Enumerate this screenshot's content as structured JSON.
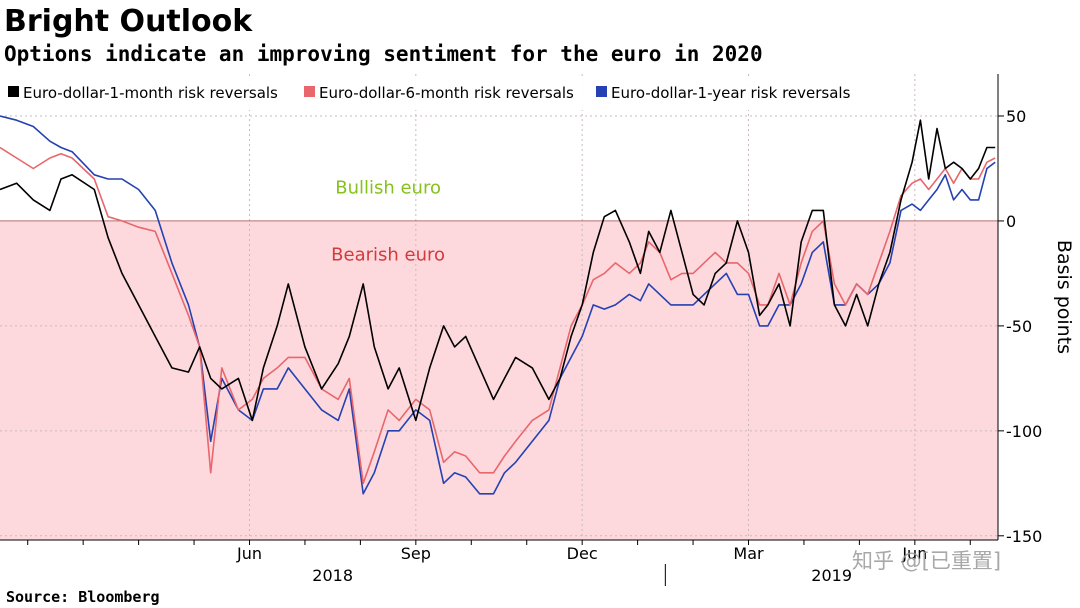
{
  "title": "Bright Outlook",
  "subtitle": "Options indicate an improving sentiment for the euro in 2020",
  "source": "Source: Bloomberg",
  "watermark": "知乎 @[已重置]",
  "chart_data": {
    "type": "line",
    "title": "Bright Outlook",
    "subtitle": "Options indicate an improving sentiment for the euro in 2020",
    "ylabel": "Basis points",
    "ylim": [
      -152,
      70
    ],
    "yticks": [
      50,
      0,
      -50,
      -100,
      -150
    ],
    "ytick_labels": [
      "50",
      "0",
      "-50",
      "-100",
      "-150"
    ],
    "xlim": [
      0,
      18
    ],
    "month_ticks": [
      {
        "x": 4.5,
        "label": "Jun"
      },
      {
        "x": 7.5,
        "label": "Sep"
      },
      {
        "x": 10.5,
        "label": "Dec"
      },
      {
        "x": 13.5,
        "label": "Mar"
      },
      {
        "x": 16.5,
        "label": "Jun"
      }
    ],
    "year_labels": [
      {
        "x": 6.0,
        "label": "2018"
      },
      {
        "x": 15.0,
        "label": "2019"
      }
    ],
    "year_divider_x": 12.0,
    "zones": [
      {
        "label": "Bullish euro",
        "color": "#86c21d",
        "x": 7.0,
        "y": 16
      },
      {
        "label": "Bearish euro",
        "color": "#d33a3a",
        "x": 7.0,
        "y": -16
      }
    ],
    "colors": {
      "m1": "#000000",
      "m6": "#e8676c",
      "y1": "#2541b2",
      "bearish_fill": "#fdd9de",
      "zero_line": "#b07070"
    },
    "series": [
      {
        "name": "Euro-dollar-1-month risk reversals",
        "key": "m1",
        "x": [
          0,
          0.3,
          0.6,
          0.9,
          1.1,
          1.3,
          1.7,
          1.95,
          2.2,
          2.5,
          2.8,
          3.1,
          3.4,
          3.6,
          3.8,
          4.0,
          4.3,
          4.55,
          4.75,
          5.0,
          5.2,
          5.5,
          5.8,
          6.1,
          6.3,
          6.55,
          6.75,
          7.0,
          7.2,
          7.5,
          7.75,
          8.0,
          8.2,
          8.4,
          8.65,
          8.9,
          9.1,
          9.3,
          9.6,
          9.9,
          10.1,
          10.3,
          10.5,
          10.7,
          10.9,
          11.1,
          11.35,
          11.55,
          11.7,
          11.9,
          12.1,
          12.3,
          12.5,
          12.7,
          12.9,
          13.1,
          13.3,
          13.5,
          13.7,
          13.85,
          14.05,
          14.25,
          14.45,
          14.65,
          14.85,
          15.05,
          15.25,
          15.45,
          15.65,
          15.85,
          16.05,
          16.25,
          16.45,
          16.6,
          16.75,
          16.9,
          17.05,
          17.2,
          17.35,
          17.5,
          17.65,
          17.8,
          17.95
        ],
        "values": [
          15,
          18,
          10,
          5,
          20,
          22,
          15,
          -8,
          -25,
          -40,
          -55,
          -70,
          -72,
          -60,
          -75,
          -80,
          -75,
          -95,
          -70,
          -50,
          -30,
          -60,
          -80,
          -68,
          -55,
          -30,
          -60,
          -80,
          -70,
          -95,
          -70,
          -50,
          -60,
          -55,
          -70,
          -85,
          -75,
          -65,
          -70,
          -85,
          -75,
          -55,
          -40,
          -15,
          2,
          5,
          -10,
          -25,
          -5,
          -15,
          5,
          -15,
          -35,
          -40,
          -25,
          -20,
          0,
          -15,
          -45,
          -40,
          -30,
          -50,
          -10,
          5,
          5,
          -40,
          -50,
          -35,
          -50,
          -30,
          -15,
          10,
          28,
          48,
          20,
          44,
          25,
          28,
          25,
          20,
          25,
          35,
          35
        ]
      },
      {
        "name": "Euro-dollar-6-month risk reversals",
        "key": "m6",
        "x": [
          0,
          0.3,
          0.6,
          0.9,
          1.1,
          1.3,
          1.7,
          1.95,
          2.2,
          2.5,
          2.8,
          3.1,
          3.4,
          3.6,
          3.8,
          4.0,
          4.3,
          4.55,
          4.75,
          5.0,
          5.2,
          5.5,
          5.8,
          6.1,
          6.3,
          6.55,
          6.75,
          7.0,
          7.2,
          7.5,
          7.75,
          8.0,
          8.2,
          8.4,
          8.65,
          8.9,
          9.1,
          9.3,
          9.6,
          9.9,
          10.1,
          10.3,
          10.5,
          10.7,
          10.9,
          11.1,
          11.35,
          11.55,
          11.7,
          11.9,
          12.1,
          12.3,
          12.5,
          12.7,
          12.9,
          13.1,
          13.3,
          13.5,
          13.7,
          13.85,
          14.05,
          14.25,
          14.45,
          14.65,
          14.85,
          15.05,
          15.25,
          15.45,
          15.65,
          15.85,
          16.05,
          16.25,
          16.45,
          16.6,
          16.75,
          16.9,
          17.05,
          17.2,
          17.35,
          17.5,
          17.65,
          17.8,
          17.95
        ],
        "values": [
          35,
          30,
          25,
          30,
          32,
          30,
          20,
          2,
          0,
          -3,
          -5,
          -25,
          -45,
          -60,
          -120,
          -70,
          -90,
          -85,
          -75,
          -70,
          -65,
          -65,
          -80,
          -85,
          -75,
          -125,
          -110,
          -90,
          -95,
          -85,
          -90,
          -115,
          -110,
          -112,
          -120,
          -120,
          -112,
          -105,
          -95,
          -90,
          -70,
          -50,
          -40,
          -28,
          -25,
          -20,
          -25,
          -20,
          -10,
          -15,
          -28,
          -25,
          -25,
          -20,
          -15,
          -20,
          -20,
          -25,
          -40,
          -40,
          -25,
          -40,
          -20,
          -5,
          0,
          -30,
          -40,
          -30,
          -35,
          -20,
          -5,
          12,
          18,
          20,
          15,
          20,
          25,
          18,
          25,
          20,
          20,
          28,
          30
        ]
      },
      {
        "name": "Euro-dollar-1-year risk reversals",
        "key": "y1",
        "x": [
          0,
          0.3,
          0.6,
          0.9,
          1.1,
          1.3,
          1.7,
          1.95,
          2.2,
          2.5,
          2.8,
          3.1,
          3.4,
          3.6,
          3.8,
          4.0,
          4.3,
          4.55,
          4.75,
          5.0,
          5.2,
          5.5,
          5.8,
          6.1,
          6.3,
          6.55,
          6.75,
          7.0,
          7.2,
          7.5,
          7.75,
          8.0,
          8.2,
          8.4,
          8.65,
          8.9,
          9.1,
          9.3,
          9.6,
          9.9,
          10.1,
          10.3,
          10.5,
          10.7,
          10.9,
          11.1,
          11.35,
          11.55,
          11.7,
          11.9,
          12.1,
          12.3,
          12.5,
          12.7,
          12.9,
          13.1,
          13.3,
          13.5,
          13.7,
          13.85,
          14.05,
          14.25,
          14.45,
          14.65,
          14.85,
          15.05,
          15.25,
          15.45,
          15.65,
          15.85,
          16.05,
          16.25,
          16.45,
          16.6,
          16.75,
          16.9,
          17.05,
          17.2,
          17.35,
          17.5,
          17.65,
          17.8,
          17.95
        ],
        "values": [
          50,
          48,
          45,
          38,
          35,
          33,
          22,
          20,
          20,
          15,
          5,
          -20,
          -40,
          -60,
          -105,
          -75,
          -90,
          -95,
          -80,
          -80,
          -70,
          -80,
          -90,
          -95,
          -80,
          -130,
          -120,
          -100,
          -100,
          -90,
          -95,
          -125,
          -120,
          -122,
          -130,
          -130,
          -120,
          -115,
          -105,
          -95,
          -75,
          -65,
          -55,
          -40,
          -42,
          -40,
          -35,
          -38,
          -30,
          -35,
          -40,
          -40,
          -40,
          -35,
          -30,
          -25,
          -35,
          -35,
          -50,
          -50,
          -40,
          -40,
          -30,
          -15,
          -10,
          -40,
          -40,
          -30,
          -35,
          -30,
          -20,
          5,
          8,
          5,
          10,
          15,
          22,
          10,
          15,
          10,
          10,
          25,
          28
        ]
      }
    ]
  }
}
